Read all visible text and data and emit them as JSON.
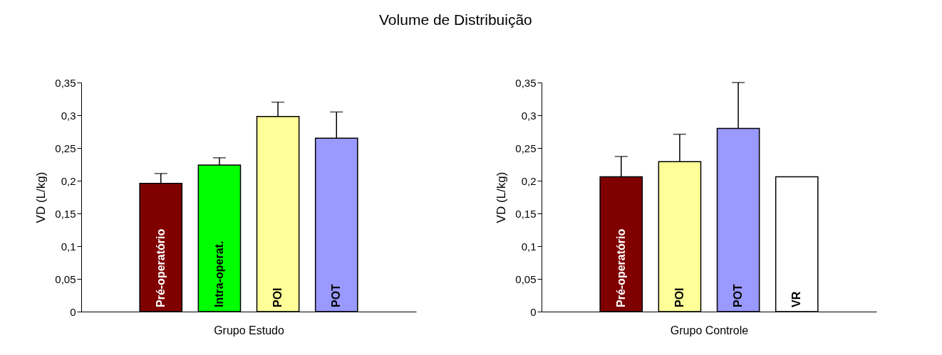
{
  "chart_data": [
    {
      "type": "bar",
      "title": "Volume de Distribuição",
      "xlabel": "Grupo Estudo",
      "ylabel": "VD (L/kg)",
      "categories": [
        "Pré-operatório",
        "Intra-operat.",
        "POI",
        "POT"
      ],
      "values": [
        0.196,
        0.224,
        0.298,
        0.265
      ],
      "colors": [
        "#800000",
        "#00ff00",
        "#ffff99",
        "#9999ff"
      ],
      "errors": [
        [
          0.196,
          0.211
        ],
        [
          0.224,
          0.235
        ],
        [
          0.298,
          0.32
        ],
        [
          0.265,
          0.305
        ]
      ],
      "ylim": [
        0,
        0.35
      ],
      "yticks": [
        0,
        {
          "value": 0.05,
          "label": "0,05"
        },
        {
          "value": 0.1,
          "label": "0,1"
        },
        {
          "value": 0.15,
          "label": "0,15"
        },
        {
          "value": 0.2,
          "label": "0,2"
        },
        {
          "value": 0.25,
          "label": "0,25"
        },
        {
          "value": 0.3,
          "label": "0,3"
        },
        {
          "value": 0.35,
          "label": "0,35"
        }
      ],
      "grid": false
    },
    {
      "type": "bar",
      "xlabel": "Grupo Controle",
      "ylabel": "VD (L/kg)",
      "categories": [
        "Pré-operatório",
        "POI",
        "POT",
        "VR"
      ],
      "values": [
        0.206,
        0.229,
        0.28,
        0.206
      ],
      "colors": [
        "#800000",
        "#ffff99",
        "#9999ff",
        "#ffffff"
      ],
      "errors": [
        [
          0.206,
          0.237
        ],
        [
          0.229,
          0.271
        ],
        [
          0.28,
          0.35
        ],
        null
      ],
      "ylim": [
        0,
        0.35
      ],
      "yticks": [
        0,
        {
          "value": 0.05,
          "label": "0,05"
        },
        {
          "value": 0.1,
          "label": "0,1"
        },
        {
          "value": 0.15,
          "label": "0,15"
        },
        {
          "value": 0.2,
          "label": "0,2"
        },
        {
          "value": 0.25,
          "label": "0,25"
        },
        {
          "value": 0.3,
          "label": "0,3"
        },
        {
          "value": 0.35,
          "label": "0,35"
        }
      ],
      "grid": false
    }
  ]
}
